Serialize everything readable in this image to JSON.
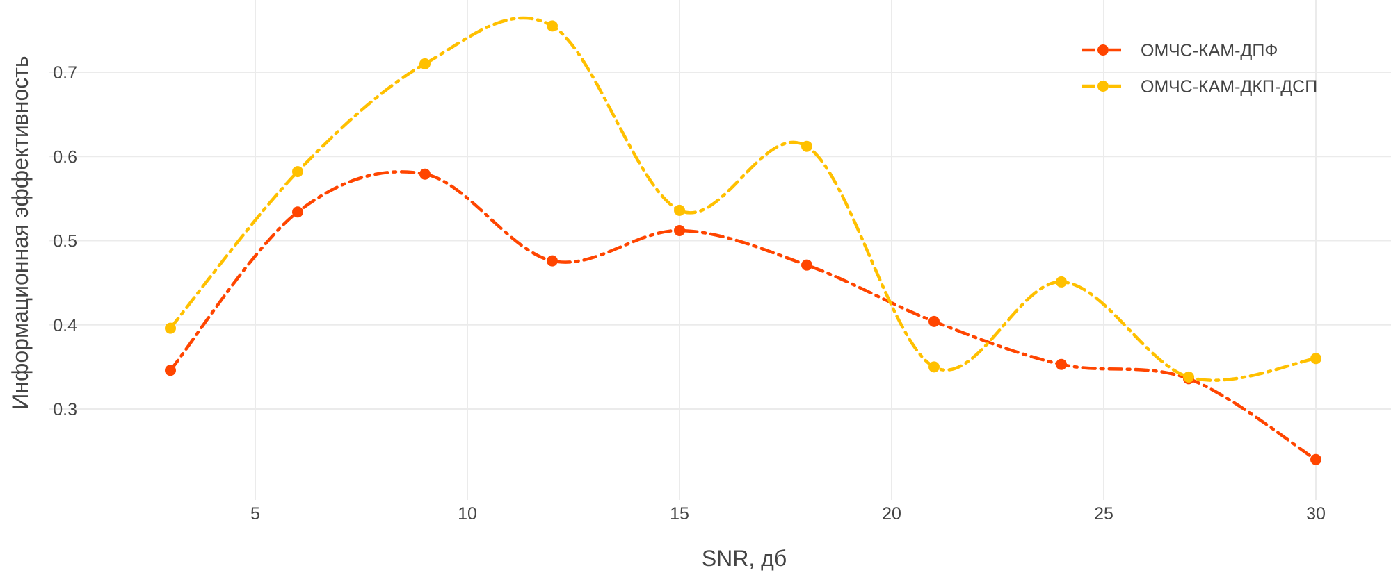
{
  "chart_data": {
    "type": "line",
    "title": "",
    "xlabel": "SNR, дб",
    "ylabel": "Информационная эффективность",
    "xlim": [
      1,
      33
    ],
    "ylim": [
      0.2,
      0.76
    ],
    "x_ticks": [
      5,
      10,
      15,
      20,
      25,
      30
    ],
    "y_ticks": [
      0.3,
      0.4,
      0.5,
      0.6,
      0.7
    ],
    "x_tick_labels": [
      "5",
      "10",
      "15",
      "20",
      "25",
      "30"
    ],
    "y_tick_labels": [
      "0.3",
      "0.4",
      "0.5",
      "0.6",
      "0.7"
    ],
    "grid": true,
    "legend_position": "top-right",
    "line_style": "dash-dot, smoothed",
    "x": [
      3,
      6,
      9,
      12,
      15,
      18,
      21,
      24,
      27,
      30
    ],
    "series": [
      {
        "name": "ОМЧС-КАМ-ДПФ",
        "color": "#ff4500",
        "values": [
          0.346,
          0.534,
          0.579,
          0.476,
          0.512,
          0.471,
          0.404,
          0.353,
          0.336,
          0.24
        ]
      },
      {
        "name": "ОМЧС-КАМ-ДКП-ДСП",
        "color": "#ffc000",
        "values": [
          0.396,
          0.582,
          0.71,
          0.755,
          0.536,
          0.612,
          0.35,
          0.451,
          0.338,
          0.36
        ]
      }
    ]
  }
}
